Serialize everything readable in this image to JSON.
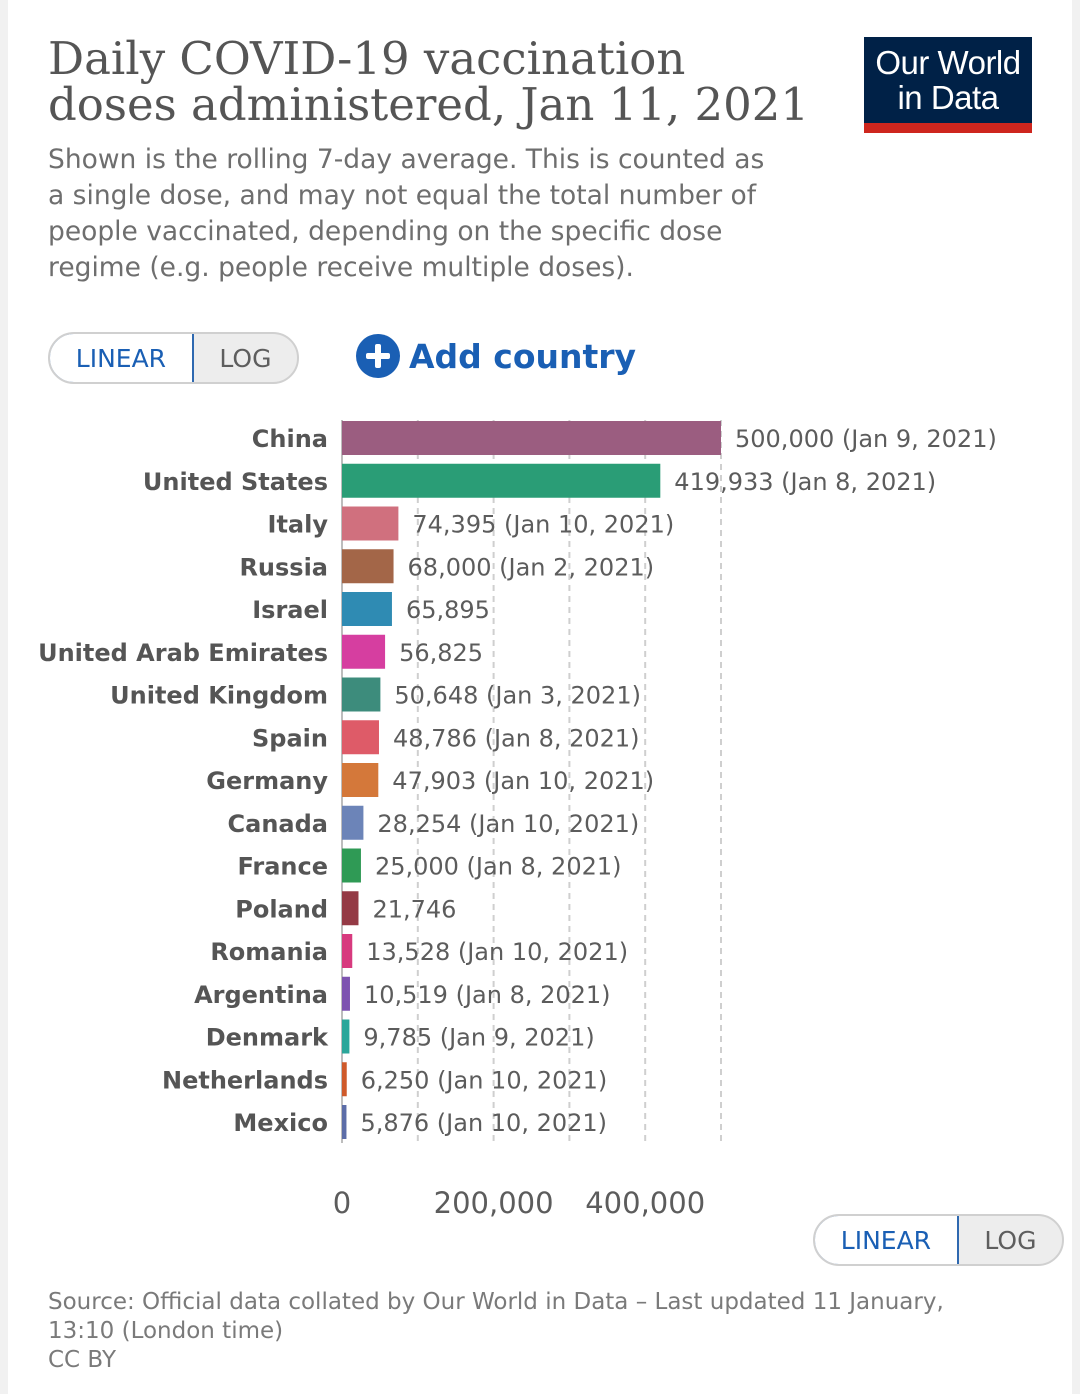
{
  "header": {
    "title": "Daily COVID-19 vaccination doses administered, Jan 11, 2021",
    "subtitle": "Shown is the rolling 7-day average. This is counted as a single dose, and may not equal the total number of people vaccinated, depending on the specific dose regime (e.g. people receive multiple doses).",
    "logo_text": "Our World in Data"
  },
  "controls": {
    "scale_linear": "LINEAR",
    "scale_log": "LOG",
    "add_country": "Add country",
    "accent_color": "#1a5fb4"
  },
  "chart_data": {
    "type": "bar",
    "orientation": "horizontal",
    "categories": [
      "China",
      "United States",
      "Italy",
      "Russia",
      "Israel",
      "United Arab Emirates",
      "United Kingdom",
      "Spain",
      "Germany",
      "Canada",
      "France",
      "Poland",
      "Romania",
      "Argentina",
      "Denmark",
      "Netherlands",
      "Mexico"
    ],
    "values": [
      500000,
      419933,
      74395,
      68000,
      65895,
      56825,
      50648,
      48786,
      47903,
      28254,
      25000,
      21746,
      13528,
      10519,
      9785,
      6250,
      5876
    ],
    "value_labels": [
      "500,000 (Jan 9, 2021)",
      "419,933 (Jan 8, 2021)",
      "74,395 (Jan 10, 2021)",
      "68,000 (Jan 2, 2021)",
      "65,895",
      "56,825",
      "50,648 (Jan 3, 2021)",
      "48,786 (Jan 8, 2021)",
      "47,903 (Jan 10, 2021)",
      "28,254 (Jan 10, 2021)",
      "25,000 (Jan 8, 2021)",
      "21,746",
      "13,528 (Jan 10, 2021)",
      "10,519 (Jan 8, 2021)",
      "9,785 (Jan 9, 2021)",
      "6,250 (Jan 10, 2021)",
      "5,876 (Jan 10, 2021)"
    ],
    "colors": [
      "#9b5d80",
      "#2a9d76",
      "#d0707e",
      "#a36648",
      "#2f8bb3",
      "#d63ea0",
      "#3d8c7c",
      "#de5b68",
      "#d4783a",
      "#6c84b8",
      "#2f9a55",
      "#943a45",
      "#d73a7e",
      "#7d53b0",
      "#2ba69a",
      "#cf5a2b",
      "#5c6da8"
    ],
    "xlim": [
      0,
      500000
    ],
    "x_ticks": [
      0,
      200000,
      400000
    ],
    "x_tick_labels": [
      "0",
      "200,000",
      "400,000"
    ],
    "grid": "vertical dashed at 100,000 intervals",
    "xlabel": "",
    "ylabel": ""
  },
  "footer": {
    "source": "Source: Official data collated by Our World in Data – Last updated 11 January, 13:10 (London time)",
    "license": "CC BY"
  }
}
